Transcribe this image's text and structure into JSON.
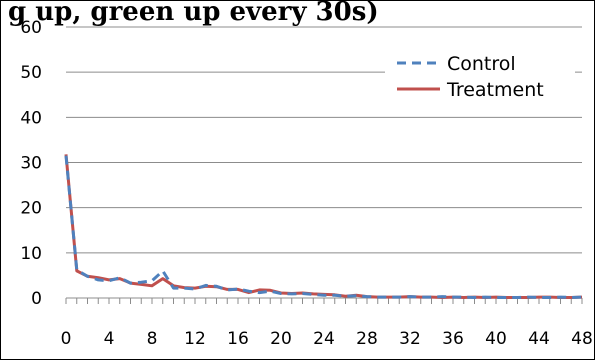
{
  "chart_data": {
    "type": "line",
    "title": "g up, green up every 30s)",
    "xlabel": "",
    "ylabel": "",
    "x": [
      0,
      1,
      2,
      3,
      4,
      5,
      6,
      7,
      8,
      9,
      10,
      11,
      12,
      13,
      14,
      15,
      16,
      17,
      18,
      19,
      20,
      21,
      22,
      23,
      24,
      25,
      26,
      27,
      28,
      29,
      30,
      31,
      32,
      33,
      34,
      35,
      36,
      37,
      38,
      39,
      40,
      41,
      42,
      43,
      44,
      45,
      46,
      47,
      48
    ],
    "xticks": [
      0,
      4,
      8,
      12,
      16,
      20,
      24,
      28,
      32,
      36,
      40,
      44,
      48
    ],
    "yticks": [
      0,
      10,
      20,
      30,
      40,
      50,
      60
    ],
    "xlim": [
      0,
      48
    ],
    "ylim": [
      0,
      60
    ],
    "grid": "horizontal",
    "legend": "top-right",
    "series": [
      {
        "name": "Control",
        "color": "#4F81BD",
        "dash": "dashed",
        "values": [
          31.5,
          6.2,
          4.8,
          4.0,
          3.8,
          4.5,
          3.3,
          3.5,
          3.8,
          6.0,
          2.2,
          2.2,
          2.0,
          2.8,
          2.6,
          1.8,
          2.0,
          1.5,
          1.2,
          1.5,
          1.0,
          0.9,
          1.0,
          0.8,
          0.6,
          0.6,
          0.4,
          0.5,
          0.3,
          0.2,
          0.2,
          0.2,
          0.3,
          0.2,
          0.2,
          0.3,
          0.2,
          0.2,
          0.1,
          0.2,
          0.1,
          0.1,
          0.1,
          0.2,
          0.1,
          0.1,
          0.2,
          0.1,
          0.2
        ]
      },
      {
        "name": "Treatment",
        "color": "#C0504D",
        "dash": "solid",
        "values": [
          31.8,
          6.0,
          4.8,
          4.5,
          4.0,
          4.3,
          3.3,
          3.0,
          2.7,
          4.3,
          2.7,
          2.3,
          2.2,
          2.6,
          2.5,
          1.9,
          1.9,
          1.2,
          1.8,
          1.7,
          1.1,
          1.0,
          1.1,
          0.9,
          0.8,
          0.7,
          0.4,
          0.6,
          0.3,
          0.2,
          0.2,
          0.2,
          0.3,
          0.2,
          0.2,
          0.1,
          0.2,
          0.1,
          0.2,
          0.1,
          0.2,
          0.1,
          0.1,
          0.1,
          0.2,
          0.2,
          0.1,
          0.1,
          0.2
        ]
      }
    ]
  }
}
